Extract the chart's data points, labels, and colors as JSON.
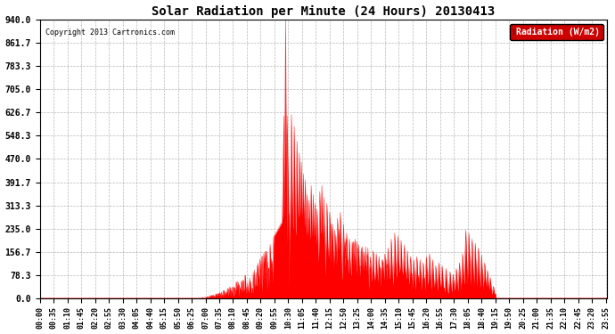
{
  "title": "Solar Radiation per Minute (24 Hours) 20130413",
  "copyright_text": "Copyright 2013 Cartronics.com",
  "legend_label": "Radiation (W/m2)",
  "background_color": "#ffffff",
  "fill_color": "#ff0000",
  "line_color": "#ff0000",
  "dashed_line_color": "#ff0000",
  "grid_color": "#888888",
  "ylim": [
    0.0,
    940.0
  ],
  "ytick_values": [
    0.0,
    78.3,
    156.7,
    235.0,
    313.3,
    391.7,
    470.0,
    548.3,
    626.7,
    705.0,
    783.3,
    861.7,
    940.0
  ],
  "total_minutes": 1440,
  "sunrise_minute": 388,
  "sunset_minute": 1157,
  "peak_minute": 623,
  "peak_value": 940.0,
  "xtick_step": 35
}
